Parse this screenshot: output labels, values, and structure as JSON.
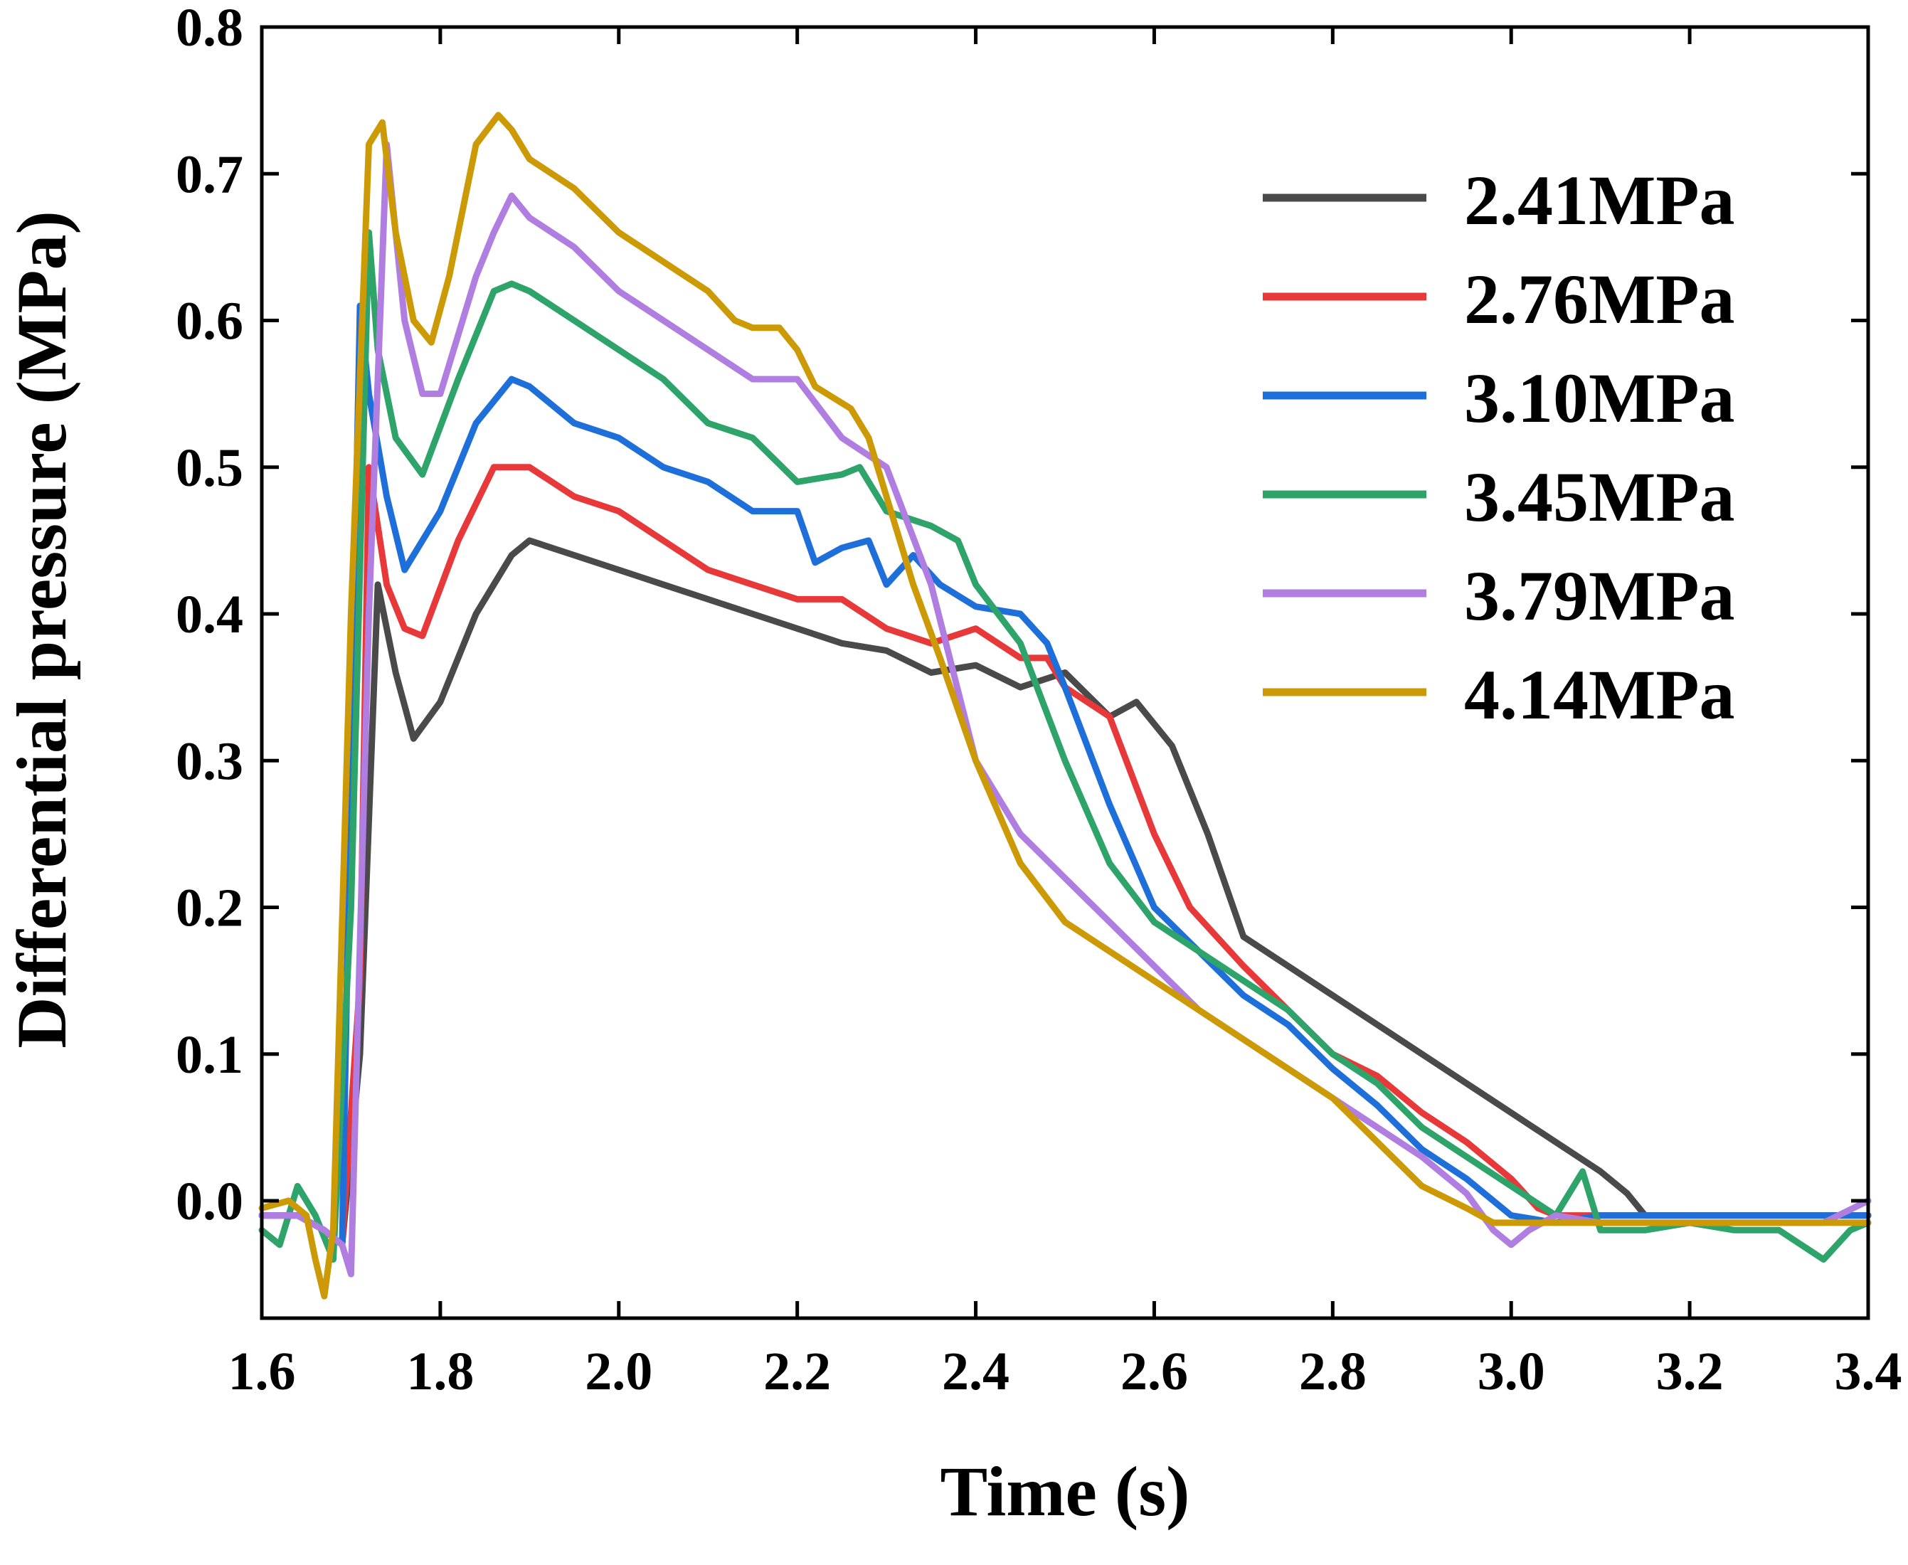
{
  "chart_data": {
    "type": "line",
    "title": "",
    "xlabel": "Time (s)",
    "ylabel": "Differential pressure (MPa)",
    "xlim": [
      1.6,
      3.4
    ],
    "ylim": [
      -0.08,
      0.8
    ],
    "xticks": [
      1.6,
      1.8,
      2.0,
      2.2,
      2.4,
      2.6,
      2.8,
      3.0,
      3.2,
      3.4
    ],
    "xtick_labels": [
      "1.6",
      "1.8",
      "2.0",
      "2.2",
      "2.4",
      "2.6",
      "2.8",
      "3.0",
      "3.2",
      "3.4"
    ],
    "yticks": [
      0.0,
      0.1,
      0.2,
      0.3,
      0.4,
      0.5,
      0.6,
      0.7,
      0.8
    ],
    "ytick_labels": [
      "0.0",
      "0.1",
      "0.2",
      "0.3",
      "0.4",
      "0.5",
      "0.6",
      "0.7",
      "0.8"
    ],
    "grid": false,
    "legend_position": "top-right",
    "series": [
      {
        "name": "2.41MPa",
        "color": "#4a4a4a",
        "x": [
          1.6,
          1.64,
          1.67,
          1.69,
          1.71,
          1.73,
          1.75,
          1.77,
          1.8,
          1.84,
          1.88,
          1.9,
          1.95,
          2.0,
          2.05,
          2.1,
          2.15,
          2.2,
          2.25,
          2.3,
          2.35,
          2.4,
          2.45,
          2.5,
          2.55,
          2.58,
          2.62,
          2.66,
          2.7,
          2.75,
          2.8,
          2.85,
          2.9,
          2.95,
          3.0,
          3.05,
          3.1,
          3.13,
          3.15,
          3.2,
          3.25,
          3.3,
          3.35,
          3.4
        ],
        "y": [
          -0.01,
          -0.01,
          -0.02,
          -0.03,
          0.1,
          0.42,
          0.36,
          0.315,
          0.34,
          0.4,
          0.44,
          0.45,
          0.44,
          0.43,
          0.42,
          0.41,
          0.4,
          0.39,
          0.38,
          0.375,
          0.36,
          0.365,
          0.35,
          0.36,
          0.33,
          0.34,
          0.31,
          0.25,
          0.18,
          0.16,
          0.14,
          0.12,
          0.1,
          0.08,
          0.06,
          0.04,
          0.02,
          0.005,
          -0.01,
          -0.01,
          -0.01,
          -0.01,
          -0.01,
          -0.01
        ]
      },
      {
        "name": "2.76MPa",
        "color": "#e8393a",
        "x": [
          1.6,
          1.64,
          1.67,
          1.69,
          1.71,
          1.72,
          1.74,
          1.76,
          1.78,
          1.82,
          1.86,
          1.9,
          1.95,
          2.0,
          2.05,
          2.1,
          2.15,
          2.2,
          2.25,
          2.3,
          2.35,
          2.4,
          2.45,
          2.48,
          2.5,
          2.55,
          2.6,
          2.64,
          2.7,
          2.75,
          2.8,
          2.85,
          2.9,
          2.95,
          3.0,
          3.03,
          3.05,
          3.1,
          3.15,
          3.2,
          3.25,
          3.3,
          3.35,
          3.4
        ],
        "y": [
          -0.01,
          -0.01,
          -0.02,
          -0.03,
          0.15,
          0.5,
          0.42,
          0.39,
          0.385,
          0.45,
          0.5,
          0.5,
          0.48,
          0.47,
          0.45,
          0.43,
          0.42,
          0.41,
          0.41,
          0.39,
          0.38,
          0.39,
          0.37,
          0.37,
          0.35,
          0.33,
          0.25,
          0.2,
          0.16,
          0.13,
          0.1,
          0.085,
          0.06,
          0.04,
          0.015,
          -0.005,
          -0.01,
          -0.01,
          -0.01,
          -0.01,
          -0.01,
          -0.01,
          -0.01,
          -0.01
        ]
      },
      {
        "name": "3.10MPa",
        "color": "#1e6fd9",
        "x": [
          1.6,
          1.64,
          1.67,
          1.69,
          1.7,
          1.71,
          1.72,
          1.74,
          1.76,
          1.8,
          1.84,
          1.88,
          1.9,
          1.95,
          2.0,
          2.05,
          2.1,
          2.15,
          2.2,
          2.22,
          2.25,
          2.28,
          2.3,
          2.33,
          2.36,
          2.4,
          2.45,
          2.48,
          2.5,
          2.55,
          2.6,
          2.65,
          2.7,
          2.75,
          2.8,
          2.85,
          2.9,
          2.95,
          3.0,
          3.05,
          3.1,
          3.2,
          3.3,
          3.4
        ],
        "y": [
          -0.01,
          -0.01,
          -0.02,
          -0.03,
          0.3,
          0.61,
          0.55,
          0.48,
          0.43,
          0.47,
          0.53,
          0.56,
          0.555,
          0.53,
          0.52,
          0.5,
          0.49,
          0.47,
          0.47,
          0.435,
          0.445,
          0.45,
          0.42,
          0.44,
          0.42,
          0.405,
          0.4,
          0.38,
          0.35,
          0.27,
          0.2,
          0.17,
          0.14,
          0.12,
          0.09,
          0.065,
          0.035,
          0.015,
          -0.01,
          -0.015,
          -0.01,
          -0.01,
          -0.01,
          -0.01
        ]
      },
      {
        "name": "3.45MPa",
        "color": "#2ea36a",
        "x": [
          1.6,
          1.62,
          1.64,
          1.66,
          1.68,
          1.7,
          1.72,
          1.73,
          1.75,
          1.78,
          1.82,
          1.86,
          1.88,
          1.9,
          1.95,
          2.0,
          2.05,
          2.1,
          2.15,
          2.2,
          2.25,
          2.27,
          2.3,
          2.35,
          2.38,
          2.4,
          2.45,
          2.5,
          2.55,
          2.6,
          2.65,
          2.7,
          2.75,
          2.8,
          2.85,
          2.9,
          2.95,
          3.0,
          3.05,
          3.08,
          3.1,
          3.15,
          3.2,
          3.25,
          3.3,
          3.35,
          3.38,
          3.4
        ],
        "y": [
          -0.02,
          -0.03,
          0.01,
          -0.01,
          -0.04,
          0.2,
          0.66,
          0.58,
          0.52,
          0.495,
          0.56,
          0.62,
          0.625,
          0.62,
          0.6,
          0.58,
          0.56,
          0.53,
          0.52,
          0.49,
          0.495,
          0.5,
          0.47,
          0.46,
          0.45,
          0.42,
          0.38,
          0.3,
          0.23,
          0.19,
          0.17,
          0.15,
          0.13,
          0.1,
          0.08,
          0.05,
          0.03,
          0.01,
          -0.01,
          0.02,
          -0.02,
          -0.02,
          -0.015,
          -0.02,
          -0.02,
          -0.04,
          -0.02,
          -0.015
        ]
      },
      {
        "name": "3.79MPa",
        "color": "#b07de0",
        "x": [
          1.6,
          1.64,
          1.67,
          1.69,
          1.7,
          1.72,
          1.74,
          1.76,
          1.78,
          1.8,
          1.84,
          1.86,
          1.88,
          1.9,
          1.95,
          2.0,
          2.05,
          2.1,
          2.15,
          2.2,
          2.25,
          2.3,
          2.35,
          2.4,
          2.45,
          2.5,
          2.55,
          2.6,
          2.65,
          2.7,
          2.75,
          2.8,
          2.85,
          2.9,
          2.95,
          2.98,
          3.0,
          3.02,
          3.05,
          3.1,
          3.2,
          3.3,
          3.35,
          3.4
        ],
        "y": [
          -0.01,
          -0.01,
          -0.02,
          -0.03,
          -0.05,
          0.4,
          0.72,
          0.6,
          0.55,
          0.55,
          0.63,
          0.66,
          0.685,
          0.67,
          0.65,
          0.62,
          0.6,
          0.58,
          0.56,
          0.56,
          0.52,
          0.5,
          0.42,
          0.3,
          0.25,
          0.22,
          0.19,
          0.16,
          0.13,
          0.11,
          0.09,
          0.07,
          0.05,
          0.03,
          0.005,
          -0.02,
          -0.03,
          -0.02,
          -0.01,
          -0.015,
          -0.015,
          -0.015,
          -0.015,
          0.0
        ]
      },
      {
        "name": "4.14MPa",
        "color": "#cc9a06",
        "x": [
          1.6,
          1.63,
          1.65,
          1.66,
          1.67,
          1.68,
          1.7,
          1.72,
          1.735,
          1.75,
          1.77,
          1.79,
          1.81,
          1.84,
          1.865,
          1.88,
          1.9,
          1.95,
          2.0,
          2.05,
          2.1,
          2.13,
          2.15,
          2.18,
          2.2,
          2.22,
          2.26,
          2.28,
          2.3,
          2.33,
          2.36,
          2.4,
          2.45,
          2.5,
          2.55,
          2.6,
          2.65,
          2.7,
          2.75,
          2.8,
          2.85,
          2.9,
          2.95,
          2.98,
          3.0,
          3.05,
          3.1,
          3.2,
          3.3,
          3.4
        ],
        "y": [
          -0.005,
          0.0,
          -0.01,
          -0.04,
          -0.065,
          -0.02,
          0.4,
          0.72,
          0.735,
          0.66,
          0.6,
          0.585,
          0.63,
          0.72,
          0.74,
          0.73,
          0.71,
          0.69,
          0.66,
          0.64,
          0.62,
          0.6,
          0.595,
          0.595,
          0.58,
          0.555,
          0.54,
          0.52,
          0.48,
          0.42,
          0.37,
          0.3,
          0.23,
          0.19,
          0.17,
          0.15,
          0.13,
          0.11,
          0.09,
          0.07,
          0.04,
          0.01,
          -0.005,
          -0.015,
          -0.015,
          -0.015,
          -0.015,
          -0.015,
          -0.015,
          -0.015
        ]
      }
    ]
  }
}
